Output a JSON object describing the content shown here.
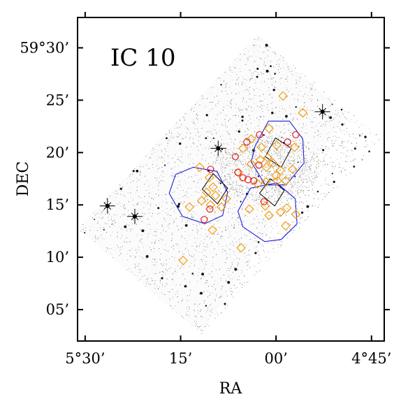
{
  "chart_data": {
    "type": "scatter",
    "title": "",
    "annotation": "IC 10",
    "xlabel": "RA",
    "ylabel": "DEC",
    "x_ticks": [
      {
        "value": 82.5,
        "label": "5°30’"
      },
      {
        "value": 78.75,
        "label": "15’"
      },
      {
        "value": 75.0,
        "label": "00’"
      },
      {
        "value": 71.25,
        "label": "4°45’"
      }
    ],
    "y_ticks": [
      {
        "value": 59.5,
        "label": "59°30’"
      },
      {
        "value": 59.4167,
        "label": "25’"
      },
      {
        "value": 59.3333,
        "label": "20’"
      },
      {
        "value": 59.25,
        "label": "15’"
      },
      {
        "value": 59.1667,
        "label": "10’"
      },
      {
        "value": 59.0833,
        "label": "05’"
      }
    ],
    "xlim_minutes_of_time": [
      331.2,
      283.0
    ],
    "ylim_arcmin": [
      2.0,
      32.9
    ],
    "x_axis_reversed": true,
    "grid": false,
    "legend": "none",
    "colors": {
      "diamonds": "#f39c12",
      "circles": "#e41a1c",
      "hexagons": "#1f1fe0",
      "squares": "#000000",
      "stars": "#000000"
    },
    "series": [
      {
        "marker": "diamond",
        "points": [
          [
            298.9,
            25.4
          ],
          [
            295.8,
            23.8
          ],
          [
            301.1,
            22.3
          ],
          [
            303.9,
            21.3
          ],
          [
            305.2,
            20.4
          ],
          [
            302.3,
            20.5
          ],
          [
            299.9,
            20.7
          ],
          [
            297.1,
            20.5
          ],
          [
            301.3,
            19.5
          ],
          [
            302.5,
            19.3
          ],
          [
            300.5,
            19.0
          ],
          [
            303.9,
            18.9
          ],
          [
            301.5,
            18.6
          ],
          [
            297.4,
            18.4
          ],
          [
            299.3,
            18.3
          ],
          [
            305.9,
            18.1
          ],
          [
            300.0,
            17.8
          ],
          [
            298.5,
            17.3
          ],
          [
            299.8,
            17.3
          ],
          [
            301.6,
            17.2
          ],
          [
            302.9,
            17.0
          ],
          [
            310.5,
            17.6
          ],
          [
            309.9,
            16.7
          ],
          [
            310.9,
            16.2
          ],
          [
            309.5,
            15.9
          ],
          [
            307.8,
            15.6
          ],
          [
            311.7,
            15.4
          ],
          [
            310.3,
            15.0
          ],
          [
            313.6,
            14.8
          ],
          [
            308.6,
            14.8
          ],
          [
            298.3,
            14.7
          ],
          [
            301.7,
            14.9
          ],
          [
            304.2,
            14.6
          ],
          [
            301.1,
            14.0
          ],
          [
            299.3,
            14.3
          ],
          [
            296.9,
            14.1
          ],
          [
            298.5,
            13.0
          ],
          [
            310.0,
            12.6
          ],
          [
            305.5,
            10.9
          ],
          [
            314.6,
            9.7
          ],
          [
            312.0,
            18.6
          ]
        ]
      },
      {
        "marker": "circle",
        "points": [
          [
            302.6,
            21.7
          ],
          [
            304.6,
            21.0
          ],
          [
            298.2,
            21.0
          ],
          [
            296.9,
            21.7
          ],
          [
            310.3,
            18.4
          ],
          [
            306.0,
            18.1
          ],
          [
            305.2,
            17.6
          ],
          [
            304.4,
            17.4
          ],
          [
            303.5,
            17.3
          ],
          [
            301.9,
            15.3
          ],
          [
            310.4,
            14.6
          ],
          [
            311.3,
            13.6
          ],
          [
            306.4,
            19.6
          ],
          [
            302.7,
            18.8
          ]
        ]
      },
      {
        "marker": "hexagon",
        "polygons": [
          [
            [
              303.3,
              20.6
            ],
            [
              301.2,
              23.0
            ],
            [
              297.9,
              23.0
            ],
            [
              295.8,
              21.3
            ],
            [
              295.6,
              19.0
            ],
            [
              298.4,
              16.9
            ],
            [
              301.7,
              16.9
            ],
            [
              303.9,
              19.1
            ]
          ],
          [
            [
              313.0,
              18.6
            ],
            [
              309.3,
              18.2
            ],
            [
              307.6,
              16.2
            ],
            [
              308.4,
              14.0
            ],
            [
              311.2,
              13.2
            ],
            [
              314.7,
              13.9
            ],
            [
              316.8,
              16.1
            ],
            [
              315.8,
              17.9
            ]
          ],
          [
            [
              304.0,
              16.6
            ],
            [
              299.9,
              17.1
            ],
            [
              297.0,
              15.6
            ],
            [
              296.7,
              13.2
            ],
            [
              299.2,
              11.7
            ],
            [
              301.8,
              11.5
            ],
            [
              305.2,
              12.9
            ],
            [
              306.0,
              14.4
            ]
          ]
        ]
      },
      {
        "marker": "square",
        "polygons": [
          [
            [
              301.7,
              19.6
            ],
            [
              300.1,
              21.4
            ],
            [
              297.6,
              20.4
            ],
            [
              299.2,
              18.6
            ]
          ],
          [
            [
              311.6,
              16.5
            ],
            [
              309.9,
              18.0
            ],
            [
              307.6,
              16.6
            ],
            [
              309.2,
              15.1
            ]
          ],
          [
            [
              302.6,
              16.1
            ],
            [
              300.9,
              17.5
            ],
            [
              298.7,
              16.4
            ],
            [
              300.2,
              14.9
            ]
          ]
        ]
      },
      {
        "marker": "bright-star",
        "points": [
          [
            326.5,
            14.9
          ],
          [
            322.2,
            13.9
          ],
          [
            292.7,
            23.9
          ],
          [
            309.1,
            20.4
          ]
        ]
      }
    ],
    "survey_footprint_corners": [
      [
        331.2,
        12.7
      ],
      [
        302.9,
        31.3
      ],
      [
        289.2,
        23.6
      ],
      [
        311.7,
        2.7
      ]
    ]
  }
}
